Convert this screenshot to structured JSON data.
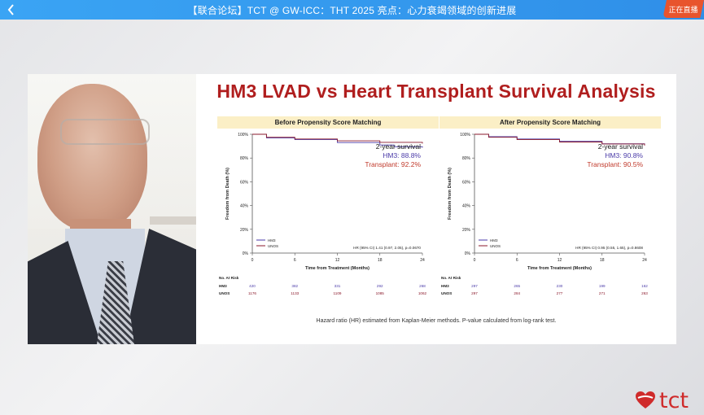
{
  "topbar": {
    "title": "【联合论坛】TCT @ GW-ICC：THT 2025 亮点：心力衰竭领域的创新进展",
    "live_badge": "正在直播",
    "back_icon": "chevron-left-icon"
  },
  "slide": {
    "title": "HM3 LVAD vs Heart Transplant Survival Analysis",
    "footnote": "Hazard ratio (HR) estimated from Kaplan-Meier methods. P-value calculated from log-rank test."
  },
  "logo": {
    "text": "tct",
    "color": "#cf2b2b"
  },
  "colors": {
    "hm3": "#4a3aa8",
    "unos": "#8b1a2c"
  },
  "chart_data": [
    {
      "type": "line",
      "title": "Before Propensity Score Matching",
      "xlabel": "Time from Treatment (Months)",
      "ylabel": "Freedom from Death (%)",
      "x_ticks": [
        0,
        6,
        12,
        18,
        24
      ],
      "y_ticks": [
        "0%",
        "20%",
        "40%",
        "60%",
        "80%",
        "100%"
      ],
      "ylim": [
        0,
        100
      ],
      "xlim": [
        0,
        24
      ],
      "series": [
        {
          "name": "HM3",
          "x": [
            0,
            2,
            6,
            12,
            18,
            20,
            24
          ],
          "y": [
            100,
            97,
            95.5,
            93,
            91,
            89.5,
            88.8
          ]
        },
        {
          "name": "UNOS",
          "x": [
            0,
            2,
            6,
            12,
            18,
            24
          ],
          "y": [
            100,
            97.5,
            96,
            94.5,
            93.2,
            92.2
          ]
        }
      ],
      "legend": [
        "HM3",
        "UNOS"
      ],
      "survival_heading": "2-year survival",
      "survival_hm3": "HM3: 88.8%",
      "survival_transplant": "Transplant: 92.2%",
      "hr_text": "HR (95% CI) 1.41 (0.97, 2.05), p=0.0670",
      "risk_label": "No. At Risk",
      "risk": [
        {
          "name": "HM3",
          "values": [
            "420",
            "382",
            "331",
            "292",
            "268"
          ]
        },
        {
          "name": "UNOS",
          "values": [
            "1176",
            "1133",
            "1109",
            "1085",
            "1062"
          ]
        }
      ]
    },
    {
      "type": "line",
      "title": "After Propensity Score Matching",
      "xlabel": "Time from Treatment (Months)",
      "ylabel": "Freedom from Death (%)",
      "x_ticks": [
        0,
        6,
        12,
        18,
        24
      ],
      "y_ticks": [
        "0%",
        "20%",
        "40%",
        "60%",
        "80%",
        "100%"
      ],
      "ylim": [
        0,
        100
      ],
      "xlim": [
        0,
        24
      ],
      "series": [
        {
          "name": "HM3",
          "x": [
            0,
            2,
            6,
            12,
            18,
            24
          ],
          "y": [
            100,
            98,
            96,
            94,
            92,
            90.8
          ]
        },
        {
          "name": "UNOS",
          "x": [
            0,
            2,
            6,
            12,
            18,
            24
          ],
          "y": [
            100,
            97.5,
            95.5,
            93.5,
            91.8,
            90.5
          ]
        }
      ],
      "legend": [
        "HM3",
        "UNOS"
      ],
      "survival_heading": "2-year survival",
      "survival_hm3": "HM3: 90.8%",
      "survival_transplant": "Transplant: 90.5%",
      "hr_text": "HR (95% CI) 0.95 (0.55, 1.65), p=0.8608",
      "risk_label": "No. At Risk",
      "risk": [
        {
          "name": "HM3",
          "values": [
            "297",
            "265",
            "230",
            "199",
            "162"
          ]
        },
        {
          "name": "UNOS",
          "values": [
            "297",
            "284",
            "277",
            "271",
            "263"
          ]
        }
      ]
    }
  ]
}
